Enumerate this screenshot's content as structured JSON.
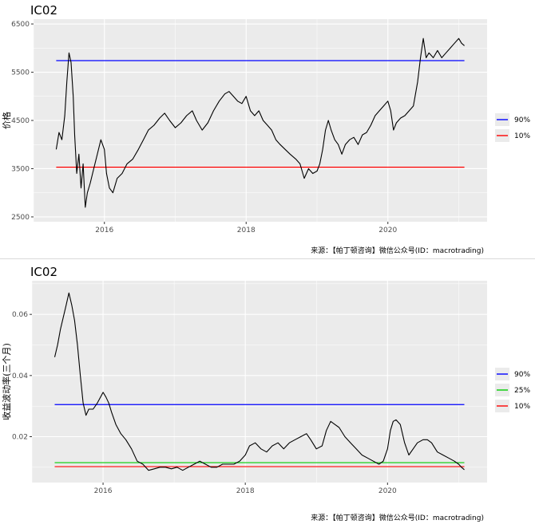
{
  "chart_data": [
    {
      "type": "line",
      "title": "IC02",
      "xlabel": "",
      "ylabel": "价格",
      "x_ticks": [
        "2016",
        "2018",
        "2020"
      ],
      "y_ticks": [
        2500,
        3500,
        4500,
        5500,
        6500
      ],
      "ylim": [
        2400,
        6600
      ],
      "xlim": [
        2015.0,
        2021.4
      ],
      "grid": true,
      "legend_position": "right",
      "source": "来源：【帕丁顿咨询】微信公众号(ID：macrotrading)",
      "colors": {
        "series": "#000000",
        "q90": "#0000ff",
        "q10": "#ff0000",
        "panel_bg": "#ebebeb",
        "grid": "#ffffff"
      },
      "reference_lines": [
        {
          "name": "90%",
          "value": 5740
        },
        {
          "name": "10%",
          "value": 3530
        }
      ],
      "series": [
        {
          "points": [
            [
              2015.32,
              3900
            ],
            [
              2015.36,
              4250
            ],
            [
              2015.4,
              4100
            ],
            [
              2015.44,
              4600
            ],
            [
              2015.47,
              5300
            ],
            [
              2015.5,
              5900
            ],
            [
              2015.53,
              5700
            ],
            [
              2015.56,
              5000
            ],
            [
              2015.58,
              4200
            ],
            [
              2015.61,
              3400
            ],
            [
              2015.64,
              3800
            ],
            [
              2015.67,
              3100
            ],
            [
              2015.7,
              3600
            ],
            [
              2015.73,
              2700
            ],
            [
              2015.76,
              3000
            ],
            [
              2015.8,
              3200
            ],
            [
              2015.85,
              3500
            ],
            [
              2015.9,
              3800
            ],
            [
              2015.95,
              4100
            ],
            [
              2016.0,
              3900
            ],
            [
              2016.03,
              3400
            ],
            [
              2016.07,
              3100
            ],
            [
              2016.12,
              3000
            ],
            [
              2016.18,
              3300
            ],
            [
              2016.25,
              3400
            ],
            [
              2016.32,
              3600
            ],
            [
              2016.4,
              3700
            ],
            [
              2016.48,
              3900
            ],
            [
              2016.55,
              4100
            ],
            [
              2016.62,
              4300
            ],
            [
              2016.7,
              4400
            ],
            [
              2016.78,
              4550
            ],
            [
              2016.85,
              4650
            ],
            [
              2016.92,
              4500
            ],
            [
              2017.0,
              4350
            ],
            [
              2017.08,
              4450
            ],
            [
              2017.16,
              4600
            ],
            [
              2017.24,
              4700
            ],
            [
              2017.3,
              4500
            ],
            [
              2017.38,
              4300
            ],
            [
              2017.46,
              4450
            ],
            [
              2017.54,
              4700
            ],
            [
              2017.62,
              4900
            ],
            [
              2017.7,
              5050
            ],
            [
              2017.76,
              5100
            ],
            [
              2017.82,
              5000
            ],
            [
              2017.88,
              4900
            ],
            [
              2017.94,
              4850
            ],
            [
              2018.0,
              5000
            ],
            [
              2018.06,
              4700
            ],
            [
              2018.12,
              4600
            ],
            [
              2018.18,
              4700
            ],
            [
              2018.24,
              4500
            ],
            [
              2018.3,
              4400
            ],
            [
              2018.36,
              4300
            ],
            [
              2018.42,
              4100
            ],
            [
              2018.48,
              4000
            ],
            [
              2018.55,
              3900
            ],
            [
              2018.62,
              3800
            ],
            [
              2018.7,
              3700
            ],
            [
              2018.76,
              3600
            ],
            [
              2018.82,
              3300
            ],
            [
              2018.88,
              3500
            ],
            [
              2018.94,
              3400
            ],
            [
              2019.0,
              3450
            ],
            [
              2019.04,
              3600
            ],
            [
              2019.08,
              3900
            ],
            [
              2019.12,
              4300
            ],
            [
              2019.16,
              4500
            ],
            [
              2019.2,
              4300
            ],
            [
              2019.25,
              4100
            ],
            [
              2019.3,
              4000
            ],
            [
              2019.35,
              3800
            ],
            [
              2019.4,
              4000
            ],
            [
              2019.46,
              4100
            ],
            [
              2019.52,
              4150
            ],
            [
              2019.58,
              4000
            ],
            [
              2019.64,
              4200
            ],
            [
              2019.7,
              4250
            ],
            [
              2019.76,
              4400
            ],
            [
              2019.82,
              4600
            ],
            [
              2019.88,
              4700
            ],
            [
              2019.94,
              4800
            ],
            [
              2020.0,
              4900
            ],
            [
              2020.04,
              4700
            ],
            [
              2020.08,
              4300
            ],
            [
              2020.12,
              4450
            ],
            [
              2020.18,
              4550
            ],
            [
              2020.24,
              4600
            ],
            [
              2020.3,
              4700
            ],
            [
              2020.36,
              4800
            ],
            [
              2020.42,
              5300
            ],
            [
              2020.46,
              5800
            ],
            [
              2020.5,
              6200
            ],
            [
              2020.54,
              5800
            ],
            [
              2020.58,
              5900
            ],
            [
              2020.64,
              5800
            ],
            [
              2020.7,
              5950
            ],
            [
              2020.76,
              5800
            ],
            [
              2020.82,
              5900
            ],
            [
              2020.88,
              6000
            ],
            [
              2020.94,
              6100
            ],
            [
              2021.0,
              6200
            ],
            [
              2021.04,
              6100
            ],
            [
              2021.08,
              6050
            ]
          ]
        }
      ]
    },
    {
      "type": "line",
      "title": "IC02",
      "xlabel": "",
      "ylabel": "收益波动率(三个月)",
      "x_ticks": [
        "2016",
        "2018",
        "2020"
      ],
      "y_ticks": [
        0.02,
        0.04,
        0.06
      ],
      "ylim": [
        0.005,
        0.071
      ],
      "xlim": [
        2015.0,
        2021.4
      ],
      "grid": true,
      "legend_position": "right",
      "source": "来源：【帕丁顿咨询】微信公众号(ID：macrotrading)",
      "colors": {
        "series": "#000000",
        "q90": "#0000ff",
        "q25": "#00cc00",
        "q10": "#ff0000",
        "panel_bg": "#ebebeb",
        "grid": "#ffffff"
      },
      "reference_lines": [
        {
          "name": "90%",
          "value": 0.0305
        },
        {
          "name": "25%",
          "value": 0.0115
        },
        {
          "name": "10%",
          "value": 0.0102
        }
      ],
      "series": [
        {
          "points": [
            [
              2015.32,
              0.046
            ],
            [
              2015.36,
              0.05
            ],
            [
              2015.4,
              0.055
            ],
            [
              2015.44,
              0.059
            ],
            [
              2015.48,
              0.063
            ],
            [
              2015.52,
              0.067
            ],
            [
              2015.56,
              0.063
            ],
            [
              2015.6,
              0.058
            ],
            [
              2015.64,
              0.05
            ],
            [
              2015.68,
              0.04
            ],
            [
              2015.72,
              0.031
            ],
            [
              2015.76,
              0.027
            ],
            [
              2015.8,
              0.029
            ],
            [
              2015.86,
              0.029
            ],
            [
              2015.92,
              0.031
            ],
            [
              2016.0,
              0.0345
            ],
            [
              2016.04,
              0.033
            ],
            [
              2016.08,
              0.031
            ],
            [
              2016.12,
              0.028
            ],
            [
              2016.18,
              0.024
            ],
            [
              2016.25,
              0.021
            ],
            [
              2016.32,
              0.019
            ],
            [
              2016.4,
              0.016
            ],
            [
              2016.48,
              0.012
            ],
            [
              2016.56,
              0.011
            ],
            [
              2016.64,
              0.009
            ],
            [
              2016.72,
              0.0095
            ],
            [
              2016.8,
              0.01
            ],
            [
              2016.88,
              0.01
            ],
            [
              2016.96,
              0.0095
            ],
            [
              2017.04,
              0.01
            ],
            [
              2017.12,
              0.009
            ],
            [
              2017.2,
              0.01
            ],
            [
              2017.28,
              0.011
            ],
            [
              2017.36,
              0.012
            ],
            [
              2017.44,
              0.011
            ],
            [
              2017.52,
              0.01
            ],
            [
              2017.6,
              0.01
            ],
            [
              2017.68,
              0.011
            ],
            [
              2017.76,
              0.011
            ],
            [
              2017.84,
              0.011
            ],
            [
              2017.92,
              0.012
            ],
            [
              2018.0,
              0.014
            ],
            [
              2018.06,
              0.017
            ],
            [
              2018.14,
              0.018
            ],
            [
              2018.22,
              0.016
            ],
            [
              2018.3,
              0.015
            ],
            [
              2018.38,
              0.017
            ],
            [
              2018.46,
              0.018
            ],
            [
              2018.54,
              0.016
            ],
            [
              2018.62,
              0.018
            ],
            [
              2018.7,
              0.019
            ],
            [
              2018.78,
              0.02
            ],
            [
              2018.86,
              0.021
            ],
            [
              2018.92,
              0.019
            ],
            [
              2019.0,
              0.016
            ],
            [
              2019.08,
              0.017
            ],
            [
              2019.14,
              0.022
            ],
            [
              2019.2,
              0.025
            ],
            [
              2019.26,
              0.024
            ],
            [
              2019.32,
              0.023
            ],
            [
              2019.4,
              0.02
            ],
            [
              2019.48,
              0.018
            ],
            [
              2019.56,
              0.016
            ],
            [
              2019.64,
              0.014
            ],
            [
              2019.72,
              0.013
            ],
            [
              2019.8,
              0.012
            ],
            [
              2019.88,
              0.011
            ],
            [
              2019.94,
              0.012
            ],
            [
              2020.0,
              0.016
            ],
            [
              2020.04,
              0.022
            ],
            [
              2020.08,
              0.025
            ],
            [
              2020.12,
              0.0255
            ],
            [
              2020.18,
              0.024
            ],
            [
              2020.24,
              0.018
            ],
            [
              2020.3,
              0.014
            ],
            [
              2020.36,
              0.016
            ],
            [
              2020.42,
              0.018
            ],
            [
              2020.5,
              0.019
            ],
            [
              2020.56,
              0.019
            ],
            [
              2020.62,
              0.018
            ],
            [
              2020.7,
              0.015
            ],
            [
              2020.78,
              0.014
            ],
            [
              2020.86,
              0.013
            ],
            [
              2020.94,
              0.012
            ],
            [
              2021.0,
              0.011
            ],
            [
              2021.04,
              0.01
            ],
            [
              2021.08,
              0.0092
            ]
          ]
        }
      ]
    }
  ]
}
